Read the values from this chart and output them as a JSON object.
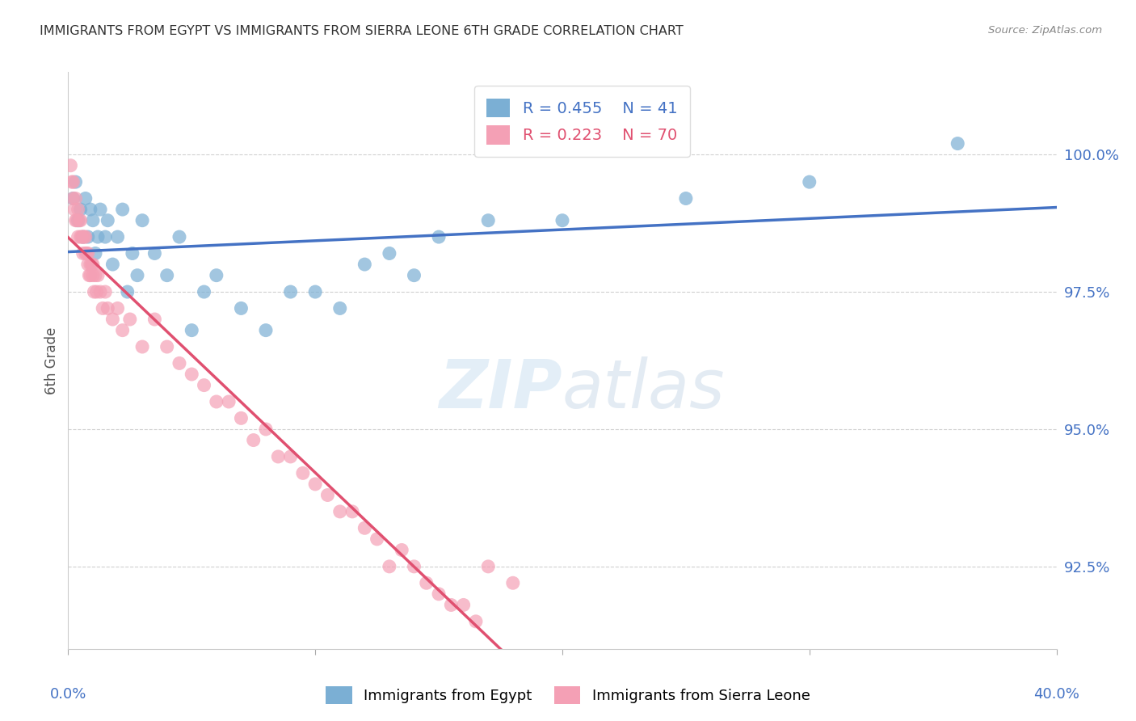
{
  "title": "IMMIGRANTS FROM EGYPT VS IMMIGRANTS FROM SIERRA LEONE 6TH GRADE CORRELATION CHART",
  "source": "Source: ZipAtlas.com",
  "ylabel": "6th Grade",
  "xlim": [
    0.0,
    40.0
  ],
  "ylim": [
    91.0,
    101.5
  ],
  "yticks": [
    92.5,
    95.0,
    97.5,
    100.0
  ],
  "ytick_labels": [
    "92.5%",
    "95.0%",
    "97.5%",
    "100.0%"
  ],
  "legend_egypt": "Immigrants from Egypt",
  "legend_sierra": "Immigrants from Sierra Leone",
  "R_egypt": 0.455,
  "N_egypt": 41,
  "R_sierra": 0.223,
  "N_sierra": 70,
  "color_egypt": "#7bafd4",
  "color_sierra": "#f4a0b5",
  "color_trendline_egypt": "#4472c4",
  "color_trendline_sierra": "#e05070",
  "color_trendline_sierra_dashed": "#e8a0b0",
  "title_color": "#333333",
  "axis_label_color": "#4472c4",
  "egypt_x": [
    0.2,
    0.3,
    0.4,
    0.5,
    0.6,
    0.7,
    0.8,
    0.9,
    1.0,
    1.1,
    1.2,
    1.3,
    1.5,
    1.6,
    1.8,
    2.0,
    2.2,
    2.4,
    2.6,
    2.8,
    3.0,
    3.5,
    4.0,
    4.5,
    5.0,
    5.5,
    6.0,
    7.0,
    8.0,
    9.0,
    10.0,
    11.0,
    12.0,
    13.0,
    14.0,
    15.0,
    17.0,
    20.0,
    25.0,
    30.0,
    36.0
  ],
  "egypt_y": [
    99.2,
    99.5,
    98.8,
    99.0,
    98.5,
    99.2,
    98.5,
    99.0,
    98.8,
    98.2,
    98.5,
    99.0,
    98.5,
    98.8,
    98.0,
    98.5,
    99.0,
    97.5,
    98.2,
    97.8,
    98.8,
    98.2,
    97.8,
    98.5,
    96.8,
    97.5,
    97.8,
    97.2,
    96.8,
    97.5,
    97.5,
    97.2,
    98.0,
    98.2,
    97.8,
    98.5,
    98.8,
    98.8,
    99.2,
    99.5,
    100.2
  ],
  "sierra_x": [
    0.1,
    0.15,
    0.2,
    0.2,
    0.25,
    0.3,
    0.3,
    0.35,
    0.4,
    0.4,
    0.45,
    0.5,
    0.5,
    0.55,
    0.6,
    0.6,
    0.65,
    0.7,
    0.7,
    0.75,
    0.8,
    0.8,
    0.85,
    0.9,
    0.9,
    0.95,
    1.0,
    1.0,
    1.05,
    1.1,
    1.15,
    1.2,
    1.3,
    1.4,
    1.5,
    1.6,
    1.8,
    2.0,
    2.2,
    2.5,
    3.0,
    3.5,
    4.0,
    4.5,
    5.0,
    5.5,
    6.0,
    6.5,
    7.0,
    7.5,
    8.0,
    8.5,
    9.0,
    9.5,
    10.0,
    10.5,
    11.0,
    11.5,
    12.0,
    12.5,
    13.0,
    13.5,
    14.0,
    14.5,
    15.0,
    15.5,
    16.0,
    16.5,
    17.0,
    18.0
  ],
  "sierra_y": [
    99.8,
    99.5,
    99.5,
    99.2,
    99.0,
    99.2,
    98.8,
    98.8,
    98.5,
    99.0,
    98.8,
    98.5,
    98.8,
    98.5,
    98.5,
    98.2,
    98.5,
    98.2,
    98.5,
    98.2,
    98.0,
    98.2,
    97.8,
    98.0,
    97.8,
    98.0,
    97.8,
    98.0,
    97.5,
    97.8,
    97.5,
    97.8,
    97.5,
    97.2,
    97.5,
    97.2,
    97.0,
    97.2,
    96.8,
    97.0,
    96.5,
    97.0,
    96.5,
    96.2,
    96.0,
    95.8,
    95.5,
    95.5,
    95.2,
    94.8,
    95.0,
    94.5,
    94.5,
    94.2,
    94.0,
    93.8,
    93.5,
    93.5,
    93.2,
    93.0,
    92.5,
    92.8,
    92.5,
    92.2,
    92.0,
    91.8,
    91.8,
    91.5,
    92.5,
    92.2
  ]
}
